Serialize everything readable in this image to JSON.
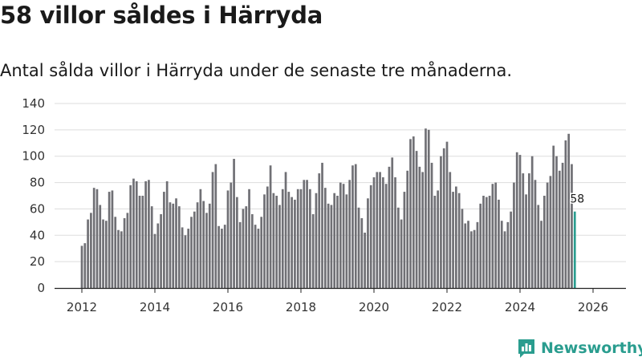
{
  "title": "58 villor såldes i Härryda",
  "subtitle": "Antal sålda villor i Härryda under de senaste tre månaderna.",
  "brand": {
    "name": "Newsworthy",
    "icon": "newsworthy-logo-icon"
  },
  "colors": {
    "bar": "#707075",
    "highlight": "#2a9d8f",
    "grid": "#dddddd",
    "axis": "#222222"
  },
  "chart_data": {
    "type": "bar",
    "title": "58 villor såldes i Härryda",
    "xlabel": "",
    "ylabel": "",
    "ylim": [
      0,
      140
    ],
    "yticks": [
      0,
      20,
      40,
      60,
      80,
      100,
      120,
      140
    ],
    "xticks": [
      "2012",
      "2014",
      "2016",
      "2018",
      "2020",
      "2022",
      "2024",
      "2026"
    ],
    "grid": true,
    "start": "2012-01",
    "end": "2026-01",
    "highlight_last": true,
    "last_label": "58",
    "values": [
      32,
      34,
      52,
      57,
      76,
      75,
      63,
      52,
      51,
      73,
      74,
      54,
      44,
      43,
      53,
      57,
      78,
      83,
      81,
      70,
      70,
      81,
      82,
      62,
      41,
      49,
      56,
      73,
      81,
      65,
      64,
      68,
      62,
      46,
      40,
      45,
      54,
      58,
      65,
      75,
      66,
      57,
      64,
      88,
      94,
      47,
      45,
      48,
      74,
      80,
      98,
      69,
      50,
      60,
      62,
      75,
      56,
      48,
      45,
      54,
      71,
      77,
      93,
      72,
      70,
      63,
      75,
      88,
      73,
      69,
      67,
      75,
      75,
      82,
      82,
      75,
      56,
      72,
      87,
      95,
      76,
      64,
      63,
      72,
      70,
      80,
      79,
      71,
      82,
      93,
      94,
      61,
      53,
      42,
      68,
      78,
      84,
      88,
      88,
      84,
      79,
      92,
      99,
      84,
      61,
      52,
      73,
      89,
      113,
      115,
      104,
      92,
      88,
      121,
      120,
      95,
      70,
      74,
      100,
      106,
      111,
      88,
      73,
      77,
      72,
      60,
      49,
      51,
      43,
      44,
      50,
      64,
      70,
      69,
      70,
      79,
      80,
      67,
      51,
      43,
      50,
      58,
      80,
      103,
      101,
      87,
      71,
      87,
      100,
      82,
      63,
      51,
      70,
      80,
      85,
      108,
      100,
      89,
      95,
      112,
      117,
      94,
      58
    ]
  }
}
